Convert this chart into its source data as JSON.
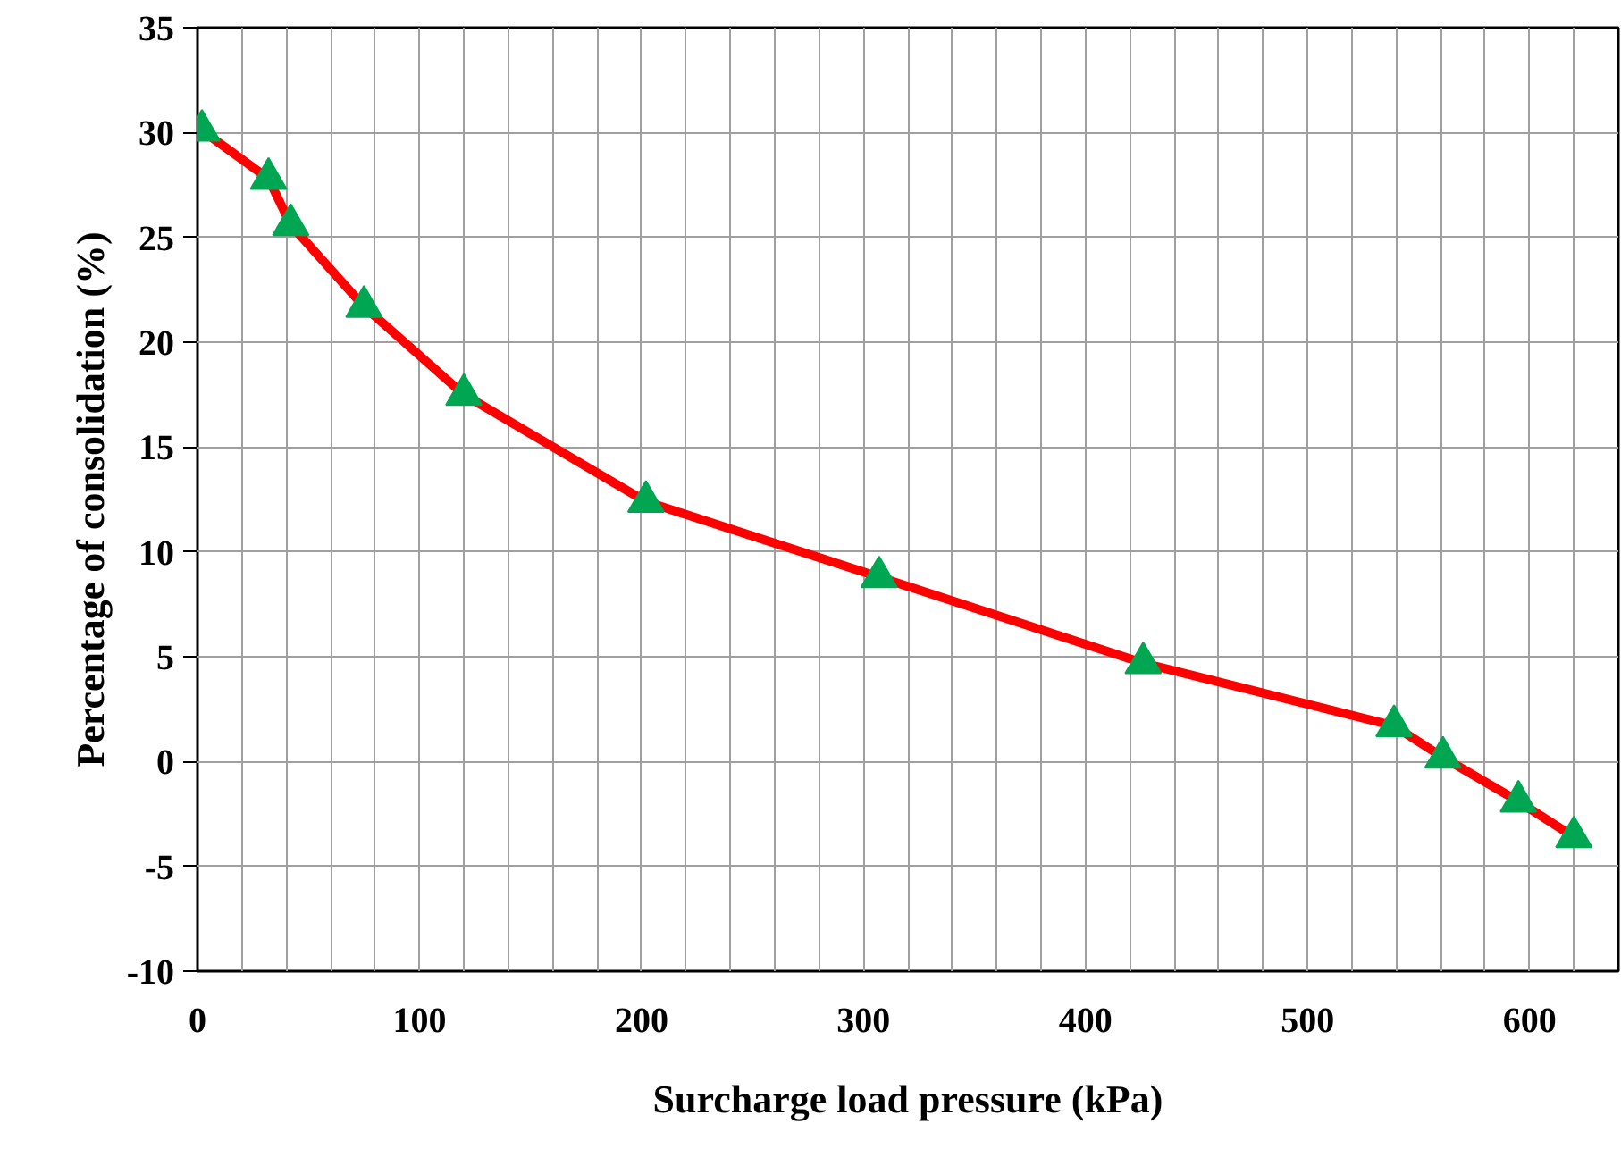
{
  "chart_data": {
    "type": "line",
    "xlabel": "Surcharge load pressure (kPa)",
    "ylabel": "Percentage of consolidation (%)",
    "x": [
      2,
      32,
      42,
      75,
      120,
      202,
      307,
      426,
      539,
      561,
      595,
      620
    ],
    "series": [
      {
        "color": "#ff0000",
        "values": [
          30.1,
          27.8,
          25.6,
          21.7,
          17.5,
          12.4,
          8.8,
          4.7,
          1.7,
          0.2,
          -1.9,
          -3.6
        ]
      }
    ],
    "marker": "triangle",
    "line_style": "solid",
    "xlim": [
      0,
      640
    ],
    "ylim": [
      -10,
      35
    ],
    "xticks": [
      0,
      {
        "value": 20,
        "label": null
      },
      {
        "value": 40,
        "label": null
      },
      {
        "value": 60,
        "label": null
      },
      {
        "value": 80,
        "label": null
      },
      100,
      {
        "value": 120,
        "label": null
      },
      {
        "value": 140,
        "label": null
      },
      {
        "value": 160,
        "label": null
      },
      {
        "value": 180,
        "label": null
      },
      200,
      {
        "value": 220,
        "label": null
      },
      {
        "value": 240,
        "label": null
      },
      {
        "value": 260,
        "label": null
      },
      {
        "value": 280,
        "label": null
      },
      300,
      {
        "value": 320,
        "label": null
      },
      {
        "value": 340,
        "label": null
      },
      {
        "value": 360,
        "label": null
      },
      {
        "value": 380,
        "label": null
      },
      400,
      {
        "value": 420,
        "label": null
      },
      {
        "value": 440,
        "label": null
      },
      {
        "value": 460,
        "label": null
      },
      {
        "value": 480,
        "label": null
      },
      500,
      {
        "value": 520,
        "label": null
      },
      {
        "value": 540,
        "label": null
      },
      {
        "value": 560,
        "label": null
      },
      {
        "value": 580,
        "label": null
      },
      600,
      {
        "value": 620,
        "label": null
      }
    ],
    "yticks": [
      -10,
      -5,
      0,
      5,
      10,
      15,
      20,
      25,
      30,
      35
    ],
    "grid": true
  }
}
